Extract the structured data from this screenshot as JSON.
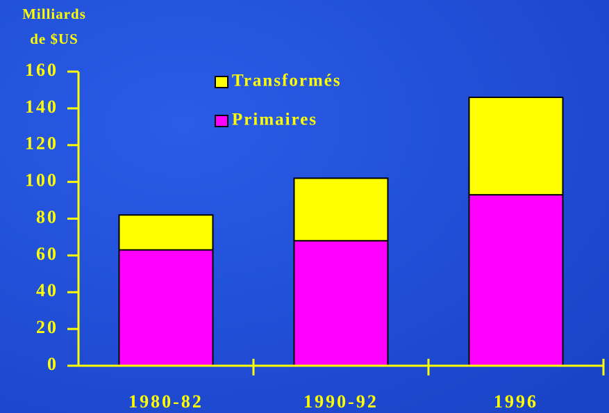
{
  "chart_data": {
    "type": "stacked_bar",
    "ylabel": [
      "Milliards",
      "de $US"
    ],
    "categories": [
      "1980-82",
      "1990-92",
      "1996"
    ],
    "series": [
      {
        "name": "Primaires",
        "color": "#ff00ff",
        "values": [
          63,
          68,
          93
        ]
      },
      {
        "name": "Transformés",
        "color": "#ffff00",
        "values": [
          19,
          34,
          53
        ]
      }
    ],
    "ylim": [
      0,
      160
    ],
    "yticks": [
      0,
      20,
      40,
      60,
      80,
      100,
      120,
      140,
      160
    ],
    "legend": "top-left"
  }
}
